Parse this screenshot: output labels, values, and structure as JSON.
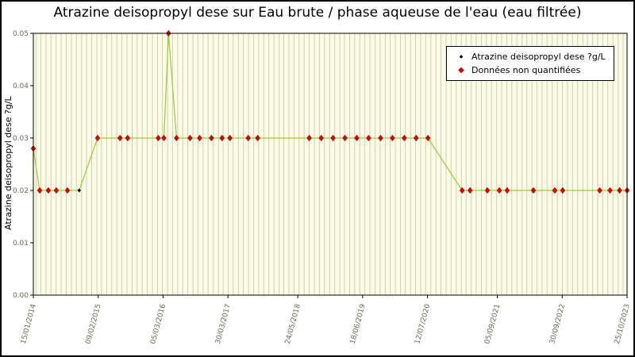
{
  "chart_data": {
    "type": "line",
    "title": "Atrazine deisopropyl dese sur Eau brute / phase aqueuse de l'eau (eau filtrée)",
    "ylabel": "Atrazine deisopropyl dese ?g/L",
    "xlabel": "",
    "ylim": [
      0,
      0.05
    ],
    "y_tick_labels": [
      "0.00",
      "0.01",
      "0.02",
      "0.03",
      "0.04",
      "0.05"
    ],
    "x_tick_labels": [
      "15/01/2014",
      "09/02/2015",
      "05/03/2016",
      "30/03/2017",
      "24/05/2018",
      "18/06/2019",
      "12/07/2020",
      "05/09/2021",
      "30/09/2022",
      "25/10/2023"
    ],
    "x_range": [
      "15/01/2014",
      "25/10/2023"
    ],
    "grid": "vertical-monthly",
    "legend_position": "top-right-inside",
    "legend": [
      {
        "label": "Atrazine deisopropyl dese ?g/L",
        "marker": "diamond",
        "color": "#000000"
      },
      {
        "label": "Données non quantifiées",
        "marker": "diamond",
        "color": "#cc0000"
      }
    ],
    "colors": {
      "line": "#9acd32",
      "marker_nonquantified": "#dd0000",
      "marker_edge": "#8b0000",
      "marker_quantified": "#000000",
      "plot_background": "#fcfce4",
      "grid_line": "#cfcfc0",
      "axis": "#000000",
      "tick_label": "#6b6b55"
    },
    "series": [
      {
        "name": "Atrazine deisopropyl dese ?g/L",
        "points": [
          {
            "date": "15/01/2014",
            "value": 0.028,
            "quantified": false
          },
          {
            "date": "22/02/2014",
            "value": 0.02,
            "quantified": false
          },
          {
            "date": "15/04/2014",
            "value": 0.02,
            "quantified": false
          },
          {
            "date": "02/06/2014",
            "value": 0.02,
            "quantified": false
          },
          {
            "date": "08/08/2014",
            "value": 0.02,
            "quantified": false
          },
          {
            "date": "18/10/2014",
            "value": 0.02,
            "quantified": true
          },
          {
            "date": "05/02/2015",
            "value": 0.03,
            "quantified": false
          },
          {
            "date": "20/06/2015",
            "value": 0.03,
            "quantified": false
          },
          {
            "date": "05/08/2015",
            "value": 0.03,
            "quantified": false
          },
          {
            "date": "05/02/2016",
            "value": 0.03,
            "quantified": false
          },
          {
            "date": "10/03/2016",
            "value": 0.03,
            "quantified": false
          },
          {
            "date": "07/04/2016",
            "value": 0.05,
            "quantified": false
          },
          {
            "date": "25/05/2016",
            "value": 0.03,
            "quantified": false
          },
          {
            "date": "14/08/2016",
            "value": 0.03,
            "quantified": false
          },
          {
            "date": "11/10/2016",
            "value": 0.03,
            "quantified": false
          },
          {
            "date": "21/12/2016",
            "value": 0.03,
            "quantified": false
          },
          {
            "date": "23/02/2017",
            "value": 0.03,
            "quantified": false
          },
          {
            "date": "11/04/2017",
            "value": 0.03,
            "quantified": false
          },
          {
            "date": "30/07/2017",
            "value": 0.03,
            "quantified": false
          },
          {
            "date": "25/09/2017",
            "value": 0.03,
            "quantified": false
          },
          {
            "date": "01/08/2018",
            "value": 0.03,
            "quantified": false
          },
          {
            "date": "12/10/2018",
            "value": 0.03,
            "quantified": false
          },
          {
            "date": "22/12/2018",
            "value": 0.03,
            "quantified": false
          },
          {
            "date": "04/03/2019",
            "value": 0.03,
            "quantified": false
          },
          {
            "date": "14/05/2019",
            "value": 0.03,
            "quantified": false
          },
          {
            "date": "24/07/2019",
            "value": 0.03,
            "quantified": false
          },
          {
            "date": "04/10/2019",
            "value": 0.03,
            "quantified": false
          },
          {
            "date": "14/12/2019",
            "value": 0.03,
            "quantified": false
          },
          {
            "date": "24/02/2020",
            "value": 0.03,
            "quantified": false
          },
          {
            "date": "05/05/2020",
            "value": 0.03,
            "quantified": false
          },
          {
            "date": "15/07/2020",
            "value": 0.03,
            "quantified": false
          },
          {
            "date": "05/02/2021",
            "value": 0.02,
            "quantified": false
          },
          {
            "date": "25/03/2021",
            "value": 0.02,
            "quantified": false
          },
          {
            "date": "07/07/2021",
            "value": 0.02,
            "quantified": false
          },
          {
            "date": "17/09/2021",
            "value": 0.02,
            "quantified": false
          },
          {
            "date": "03/11/2021",
            "value": 0.02,
            "quantified": false
          },
          {
            "date": "10/04/2022",
            "value": 0.02,
            "quantified": false
          },
          {
            "date": "16/08/2022",
            "value": 0.02,
            "quantified": false
          },
          {
            "date": "03/10/2022",
            "value": 0.02,
            "quantified": false
          },
          {
            "date": "14/05/2023",
            "value": 0.02,
            "quantified": false
          },
          {
            "date": "15/07/2023",
            "value": 0.02,
            "quantified": false
          },
          {
            "date": "10/09/2023",
            "value": 0.02,
            "quantified": false
          },
          {
            "date": "25/10/2023",
            "value": 0.02,
            "quantified": false
          }
        ]
      }
    ]
  }
}
